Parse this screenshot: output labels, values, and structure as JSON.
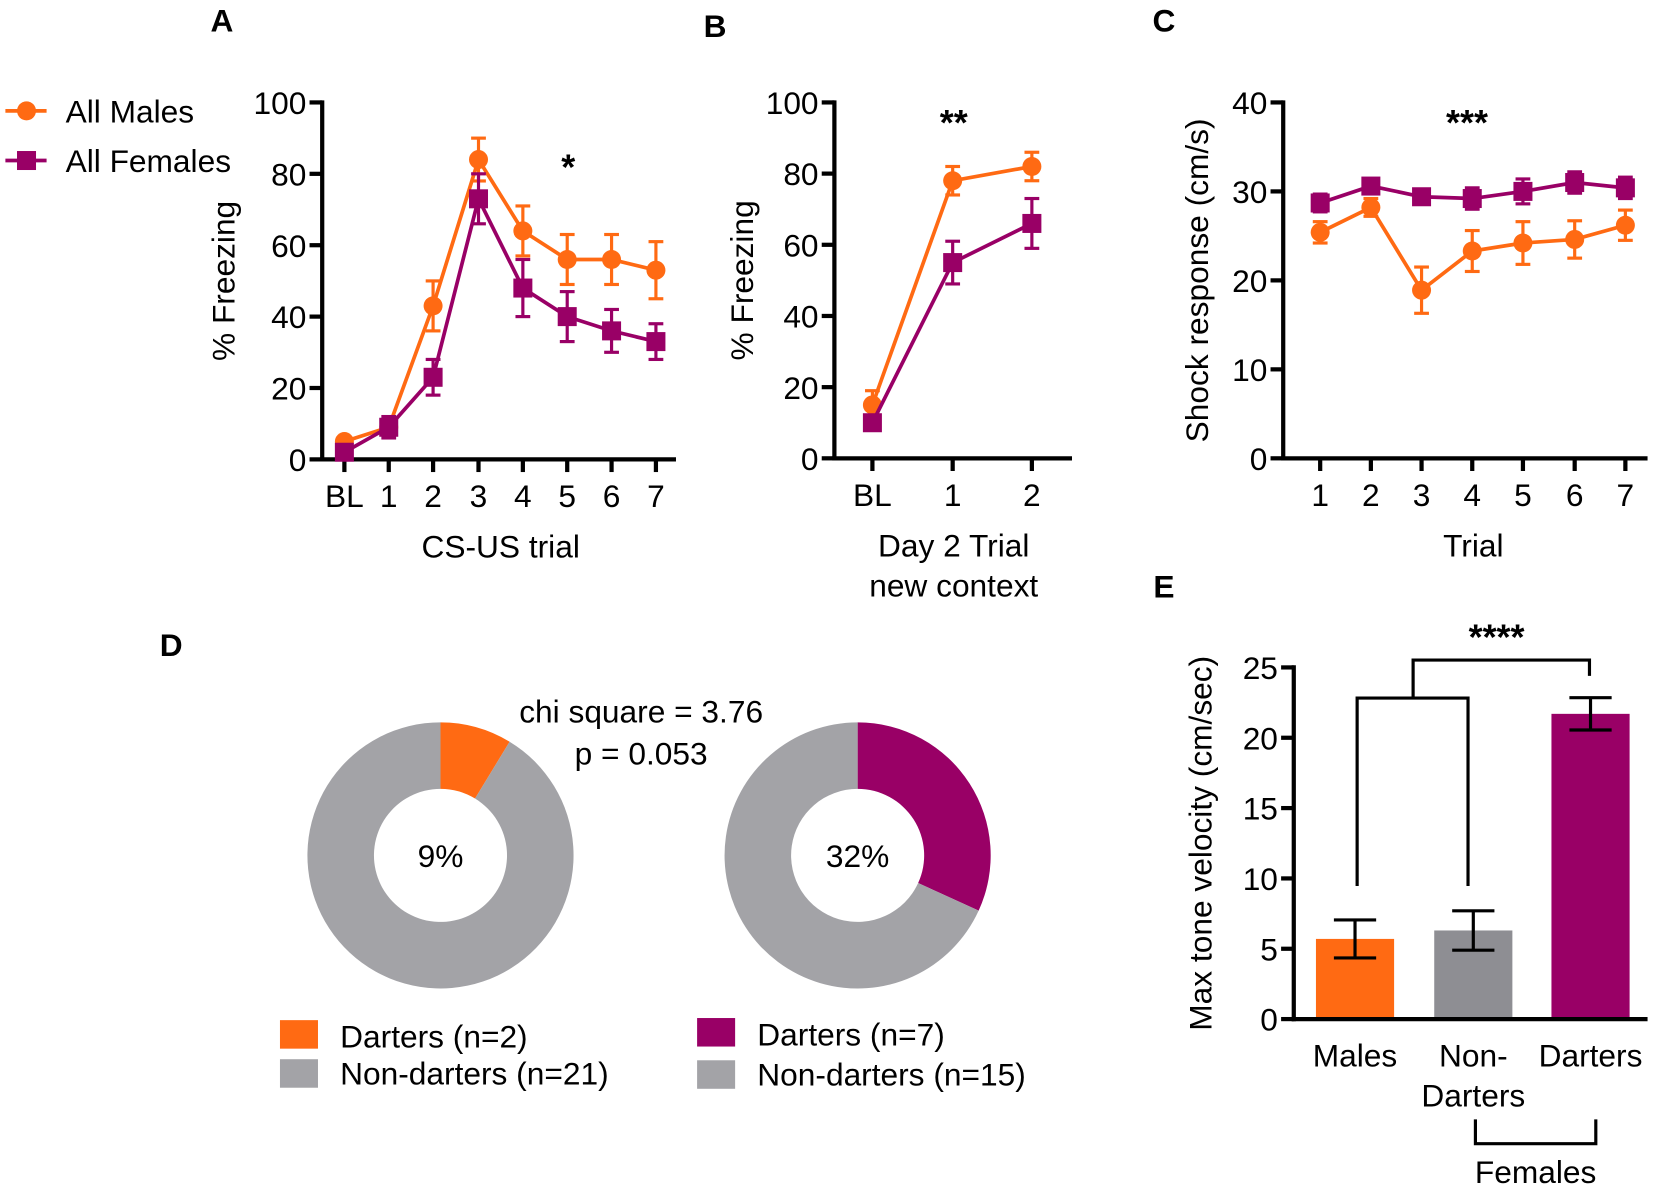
{
  "colors": {
    "males": "#FF6A13",
    "females": "#990066",
    "grey": "#A3A3A7",
    "bar_grey": "#8E8E93",
    "axis": "#000000"
  },
  "chart_data": [
    {
      "panel": "A",
      "type": "line",
      "legend": {
        "placement": "top-left",
        "entries": [
          "All Males",
          "All Females"
        ]
      },
      "xlabel": "CS-US trial",
      "ylabel": "% Freezing",
      "ylim": [
        0,
        100
      ],
      "yticks": [
        0,
        20,
        40,
        60,
        80,
        100
      ],
      "categories": [
        "BL",
        "1",
        "2",
        "3",
        "4",
        "5",
        "6",
        "7"
      ],
      "annotation": "*",
      "series": [
        {
          "name": "All Males",
          "marker": "circle",
          "values": [
            5,
            9,
            43,
            84,
            64,
            56,
            56,
            53
          ],
          "errors": [
            1,
            2,
            7,
            6,
            7,
            7,
            7,
            8
          ]
        },
        {
          "name": "All Females",
          "marker": "square",
          "values": [
            2,
            9,
            23,
            73,
            48,
            40,
            36,
            33
          ],
          "errors": [
            1,
            3,
            5,
            7,
            8,
            7,
            6,
            5
          ]
        }
      ]
    },
    {
      "panel": "B",
      "type": "line",
      "xlabel": [
        "Day 2 Trial",
        "new context"
      ],
      "ylabel": "% Freezing",
      "ylim": [
        0,
        100
      ],
      "yticks": [
        0,
        20,
        40,
        60,
        80,
        100
      ],
      "categories": [
        "BL",
        "1",
        "2"
      ],
      "annotation": "**",
      "series": [
        {
          "name": "All Males",
          "marker": "circle",
          "values": [
            15,
            78,
            82
          ],
          "errors": [
            4,
            4,
            4
          ]
        },
        {
          "name": "All Females",
          "marker": "square",
          "values": [
            10,
            55,
            66
          ],
          "errors": [
            2,
            6,
            7
          ]
        }
      ]
    },
    {
      "panel": "C",
      "type": "line",
      "xlabel": "Trial",
      "ylabel": "Shock response (cm/s)",
      "ylim": [
        0,
        40
      ],
      "yticks": [
        0,
        10,
        20,
        30,
        40
      ],
      "categories": [
        "1",
        "2",
        "3",
        "4",
        "5",
        "6",
        "7"
      ],
      "annotation": "***",
      "series": [
        {
          "name": "All Males",
          "marker": "circle",
          "values": [
            25.4,
            28.2,
            18.9,
            23.3,
            24.2,
            24.6,
            26.2
          ],
          "errors": [
            1.2,
            1.0,
            2.6,
            2.3,
            2.4,
            2.1,
            1.7
          ]
        },
        {
          "name": "All Females",
          "marker": "square",
          "values": [
            28.7,
            30.6,
            29.4,
            29.2,
            30.0,
            31.0,
            30.4
          ],
          "errors": [
            1.0,
            0.8,
            0.8,
            1.2,
            1.4,
            1.2,
            1.2
          ]
        }
      ]
    },
    {
      "panel": "D",
      "type": "pie",
      "stat_lines": [
        "chi square = 3.76",
        "p = 0.053"
      ],
      "pies": [
        {
          "center_label": "9%",
          "slices": [
            {
              "label": "Darters (n=2)",
              "value": 2,
              "color": "#FF6A13"
            },
            {
              "label": "Non-darters (n=21)",
              "value": 21,
              "color": "#A3A3A7"
            }
          ]
        },
        {
          "center_label": "32%",
          "slices": [
            {
              "label": "Darters (n=7)",
              "value": 7,
              "color": "#990066"
            },
            {
              "label": "Non-darters (n=15)",
              "value": 15,
              "color": "#A3A3A7"
            }
          ]
        }
      ]
    },
    {
      "panel": "E",
      "type": "bar",
      "ylabel": "Max tone velocity (cm/sec)",
      "ylim": [
        0,
        25
      ],
      "yticks": [
        0,
        5,
        10,
        15,
        20,
        25
      ],
      "categories": [
        [
          "Males"
        ],
        [
          "Non-",
          "Darters"
        ],
        [
          "Darters"
        ]
      ],
      "values": [
        5.7,
        6.3,
        21.7
      ],
      "errors": [
        1.35,
        1.4,
        1.15
      ],
      "bar_colors": [
        "#FF6A13",
        "#8E8E93",
        "#990066"
      ],
      "group_label": "Females",
      "annotation": "****"
    }
  ]
}
